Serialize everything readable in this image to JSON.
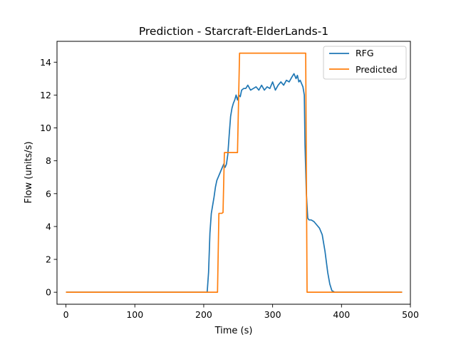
{
  "chart_data": {
    "type": "line",
    "title": "Prediction - Starcraft-ElderLands-1",
    "xlabel": "Time (s)",
    "ylabel": "Flow (units/s)",
    "xlim": [
      -13,
      500
    ],
    "ylim": [
      -0.73,
      15.27
    ],
    "xticks": [
      0,
      100,
      200,
      300,
      400,
      500
    ],
    "yticks": [
      0,
      2,
      4,
      6,
      8,
      10,
      12,
      14
    ],
    "grid": false,
    "legend_position": "top-right",
    "series": [
      {
        "name": "RFG",
        "color": "#1f77b4",
        "x": [
          0,
          100,
          205,
          207,
          209,
          211,
          213,
          215,
          217,
          219,
          221,
          223,
          225,
          227,
          229,
          231,
          233,
          235,
          237,
          239,
          241,
          243,
          245,
          247,
          249,
          251,
          253,
          255,
          258,
          261,
          264,
          268,
          272,
          276,
          280,
          284,
          288,
          292,
          296,
          300,
          304,
          308,
          312,
          316,
          320,
          324,
          328,
          331,
          334,
          336,
          338,
          340,
          342,
          344,
          346,
          347,
          349,
          351,
          353,
          356,
          360,
          364,
          368,
          372,
          376,
          380,
          383,
          386,
          390,
          395,
          400,
          450,
          488
        ],
        "y": [
          0,
          0,
          0,
          1.2,
          3.6,
          4.8,
          5.3,
          5.8,
          6.4,
          6.8,
          7.0,
          7.2,
          7.4,
          7.6,
          7.8,
          7.6,
          7.8,
          8.4,
          9.6,
          10.7,
          11.2,
          11.5,
          11.7,
          12.0,
          11.7,
          12.0,
          11.9,
          12.3,
          12.4,
          12.4,
          12.6,
          12.3,
          12.4,
          12.5,
          12.3,
          12.6,
          12.3,
          12.5,
          12.4,
          12.8,
          12.3,
          12.6,
          12.8,
          12.6,
          12.9,
          12.8,
          13.1,
          13.3,
          13.0,
          13.2,
          12.8,
          12.9,
          12.7,
          12.5,
          12.0,
          9.0,
          6.0,
          4.5,
          4.4,
          4.4,
          4.3,
          4.1,
          3.9,
          3.5,
          2.5,
          1.2,
          0.5,
          0.1,
          0,
          0,
          0,
          0,
          0
        ]
      },
      {
        "name": "Predicted",
        "color": "#ff7f0e",
        "x": [
          0,
          220,
          222,
          226,
          228,
          230,
          232,
          249,
          252,
          348,
          350,
          488
        ],
        "y": [
          0,
          0,
          4.8,
          4.8,
          4.85,
          8.5,
          8.5,
          8.5,
          14.55,
          14.55,
          0,
          0
        ]
      }
    ]
  }
}
